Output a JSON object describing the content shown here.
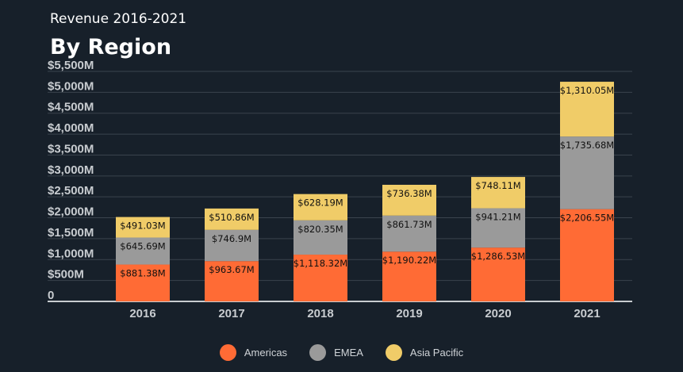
{
  "header": {
    "subtitle": "Revenue 2016-2021",
    "title": "By Region"
  },
  "colors": {
    "background": "#17202a",
    "grid": "#3a434d",
    "axis": "#c8ccd0",
    "americas": "#ff6b35",
    "emea": "#9a9a9a",
    "asia_pacific": "#f0cc68"
  },
  "chart_data": {
    "type": "bar",
    "stacked": true,
    "categories": [
      "2016",
      "2017",
      "2018",
      "2019",
      "2020",
      "2021"
    ],
    "ylim": [
      0,
      5500
    ],
    "yticks": [
      0,
      500,
      1000,
      1500,
      2000,
      2500,
      3000,
      3500,
      4000,
      4500,
      5000,
      5500
    ],
    "ytick_labels": [
      "0",
      "$500M",
      "$1,000M",
      "$1,500M",
      "$2,000M",
      "$2,500M",
      "$3,000M",
      "$3,500M",
      "$4,000M",
      "$4,500M",
      "$5,000M",
      "$5,500M"
    ],
    "grid": true,
    "legend_position": "bottom",
    "series": [
      {
        "name": "Americas",
        "color": "#ff6b35",
        "values": [
          881.38,
          963.67,
          1118.32,
          1190.22,
          1286.53,
          2206.55
        ],
        "labels": [
          "$881.38M",
          "$963.67M",
          "$1,118.32M",
          "$1,190.22M",
          "$1,286.53M",
          "$2,206.55M"
        ]
      },
      {
        "name": "EMEA",
        "color": "#9a9a9a",
        "values": [
          645.69,
          746.9,
          820.35,
          861.73,
          941.21,
          1735.68
        ],
        "labels": [
          "$645.69M",
          "$746.9M",
          "$820.35M",
          "$861.73M",
          "$941.21M",
          "$1,735.68M"
        ]
      },
      {
        "name": "Asia Pacific",
        "color": "#f0cc68",
        "values": [
          491.03,
          510.86,
          628.19,
          736.38,
          748.11,
          1310.05
        ],
        "labels": [
          "$491.03M",
          "$510.86M",
          "$628.19M",
          "$736.38M",
          "$748.11M",
          "$1,310.05M"
        ]
      }
    ]
  }
}
